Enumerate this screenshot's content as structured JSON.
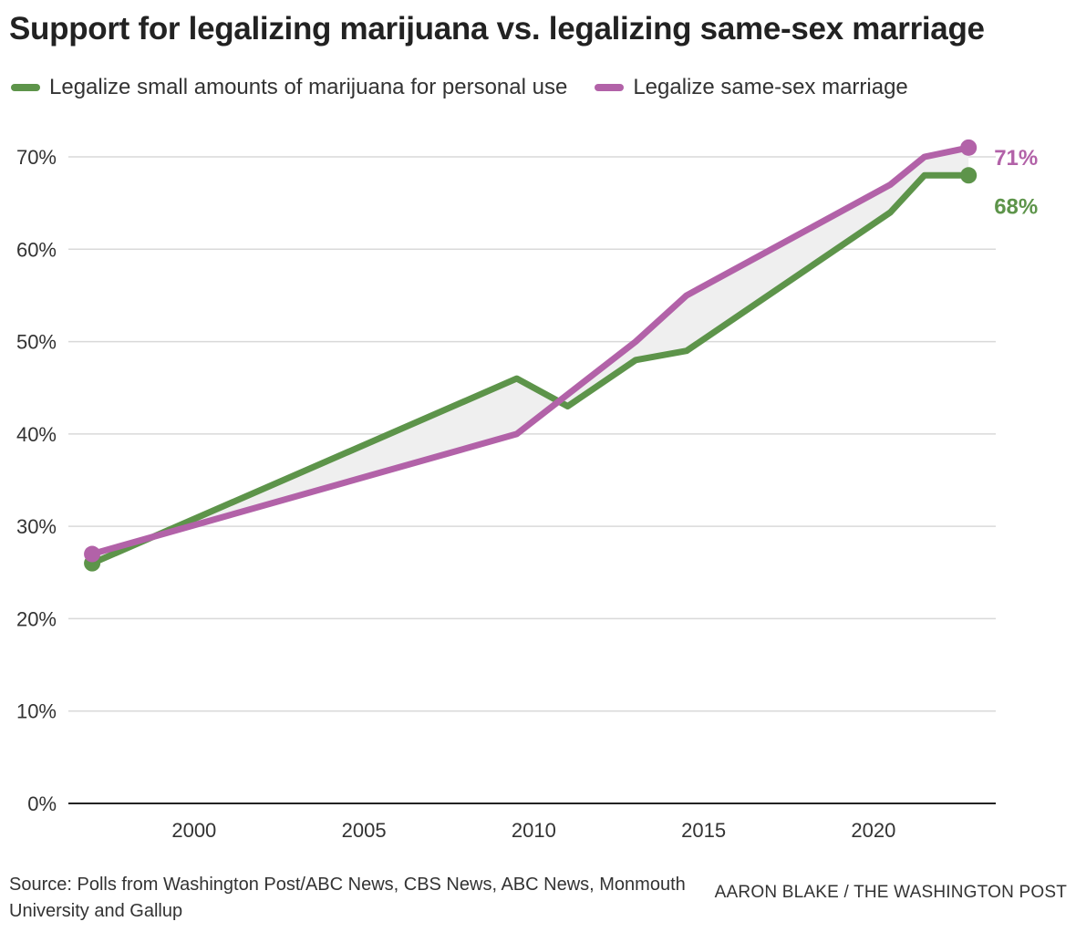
{
  "title": "Support for legalizing marijuana vs. legalizing same-sex marriage",
  "colors": {
    "marijuana": "#5d944a",
    "marriage": "#b262a8",
    "fill": "#efefef",
    "grid": "#d9d9d9",
    "axis": "#222222"
  },
  "source": "Source: Polls from Washington Post/ABC News, CBS News, ABC News, Monmouth University and Gallup",
  "credit": "AARON BLAKE / THE WASHINGTON POST",
  "chart_data": {
    "type": "line",
    "title": "Support for legalizing marijuana vs. legalizing same-sex marriage",
    "xlim": [
      1996.3,
      2023.6
    ],
    "ylim": [
      0,
      70
    ],
    "x_ticks": [
      2000,
      2005,
      2010,
      2015,
      2020
    ],
    "x_tick_labels": [
      "2000",
      "2005",
      "2010",
      "2015",
      "2020"
    ],
    "y_ticks": [
      0,
      10,
      20,
      30,
      40,
      50,
      60,
      70
    ],
    "y_tick_labels": [
      "0%",
      "10%",
      "20%",
      "30%",
      "40%",
      "50%",
      "60%",
      "70%"
    ],
    "grid": true,
    "legend_position": "top-left",
    "series": [
      {
        "name": "Legalize small amounts of marijuana for personal use",
        "color": "#5d944a",
        "end_label": "68%",
        "x": [
          1997,
          2009.5,
          2011,
          2013,
          2014.5,
          2020.5,
          2021.5,
          2022.8
        ],
        "y": [
          26,
          46,
          43,
          48,
          49,
          64,
          68,
          68
        ]
      },
      {
        "name": "Legalize same-sex marriage",
        "color": "#b262a8",
        "end_label": "71%",
        "x": [
          1997,
          2009.5,
          2013,
          2014.5,
          2020.5,
          2021.5,
          2022.8
        ],
        "y": [
          27,
          40,
          50,
          55,
          67,
          70,
          71
        ]
      }
    ]
  }
}
